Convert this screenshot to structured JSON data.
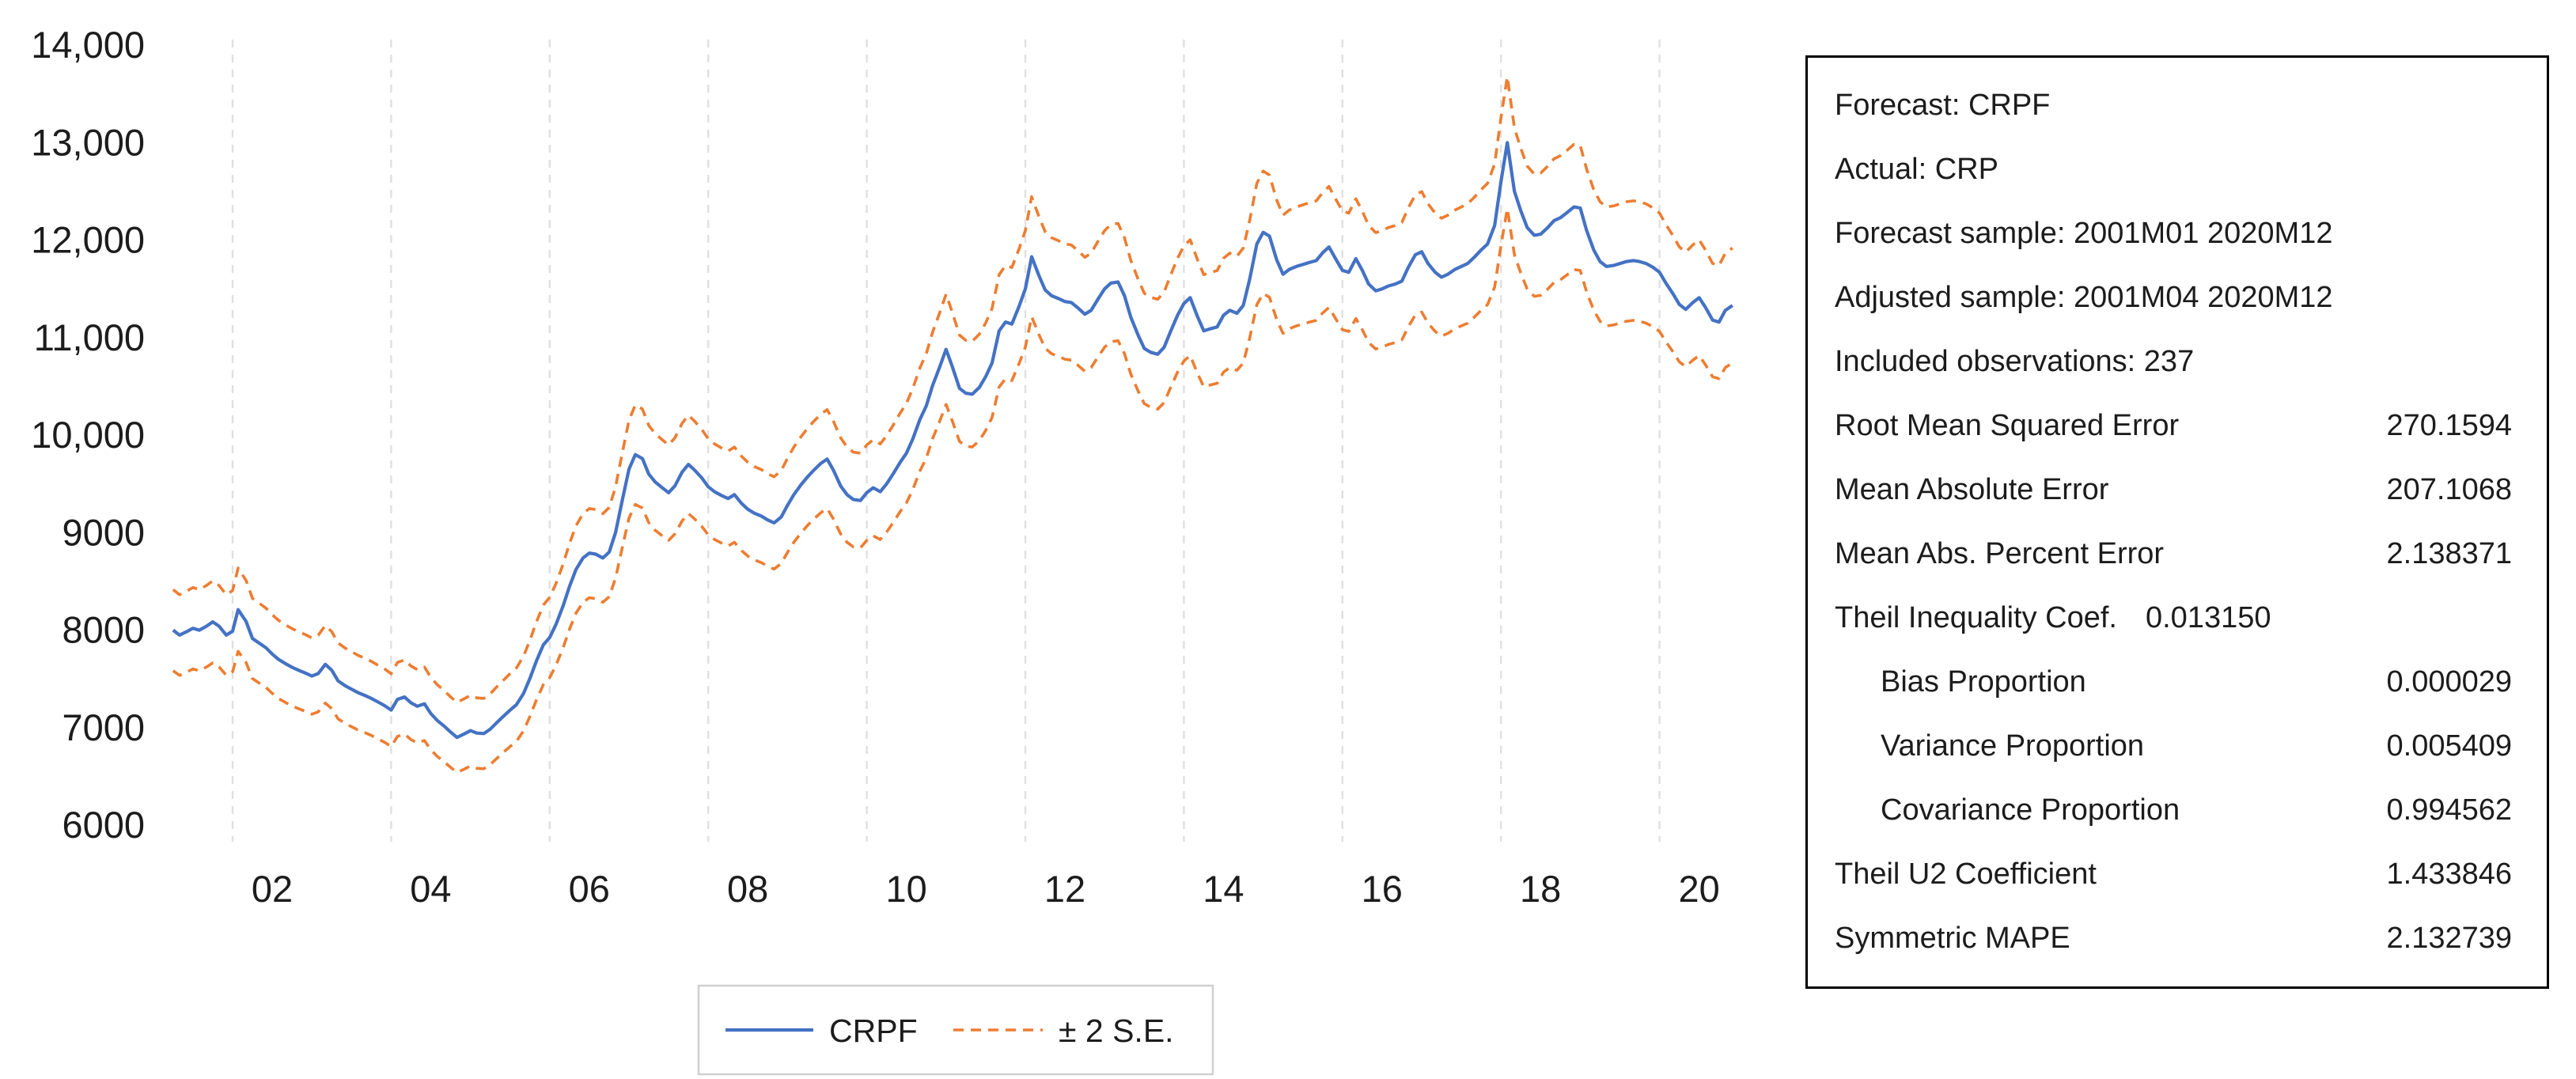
{
  "page": {
    "background": "#ffffff",
    "text_color": "#1c1c1c"
  },
  "chart_data": {
    "type": "line",
    "title": "",
    "xlabel": "",
    "ylabel": "",
    "x_axis": {
      "tick_labels": [
        "02",
        "04",
        "06",
        "08",
        "10",
        "12",
        "14",
        "16",
        "18",
        "20"
      ],
      "tick_positions": [
        2002,
        2004,
        2006,
        2008,
        2010,
        2012,
        2014,
        2016,
        2018,
        2020
      ],
      "range_decimal_years": [
        2001.0,
        2021.0
      ],
      "gridlines": "vertical dashed light gray at each labeled year"
    },
    "y_axis": {
      "tick_labels": [
        "14,000",
        "13,000",
        "12,000",
        "11,000",
        "10,000",
        "9000",
        "8000",
        "7000",
        "6000"
      ],
      "tick_values": [
        14000,
        13000,
        12000,
        11000,
        10000,
        9000,
        8000,
        7000,
        6000
      ],
      "ylim": [
        6000,
        14000
      ],
      "gridlines": "none"
    },
    "legend": {
      "position": "bottom-center",
      "border_color": "#d0d0d0",
      "items": [
        {
          "label": "CRPF",
          "color": "#4472C4",
          "line_style": "solid"
        },
        {
          "label": "± 2 S.E.",
          "color": "#ED7D31",
          "line_style": "dashed"
        }
      ]
    },
    "colors": {
      "crpf": "#4472C4",
      "se_band": "#ED7D31",
      "gridline": "#e0e0e0"
    },
    "series": [
      {
        "name": "CRPF",
        "color": "#4472C4",
        "style": "solid",
        "x_unit": "decimal_year",
        "points": [
          [
            2001.25,
            8000
          ],
          [
            2001.33,
            7950
          ],
          [
            2001.42,
            7985
          ],
          [
            2001.5,
            8020
          ],
          [
            2001.58,
            8000
          ],
          [
            2001.67,
            8040
          ],
          [
            2001.75,
            8085
          ],
          [
            2001.83,
            8040
          ],
          [
            2001.92,
            7950
          ],
          [
            2002.0,
            7990
          ],
          [
            2002.07,
            8210
          ],
          [
            2002.17,
            8090
          ],
          [
            2002.25,
            7915
          ],
          [
            2002.33,
            7870
          ],
          [
            2002.42,
            7820
          ],
          [
            2002.5,
            7755
          ],
          [
            2002.58,
            7700
          ],
          [
            2002.67,
            7655
          ],
          [
            2002.75,
            7620
          ],
          [
            2002.83,
            7590
          ],
          [
            2002.92,
            7560
          ],
          [
            2003.0,
            7530
          ],
          [
            2003.08,
            7555
          ],
          [
            2003.17,
            7650
          ],
          [
            2003.25,
            7590
          ],
          [
            2003.33,
            7480
          ],
          [
            2003.42,
            7430
          ],
          [
            2003.5,
            7395
          ],
          [
            2003.58,
            7360
          ],
          [
            2003.67,
            7330
          ],
          [
            2003.75,
            7300
          ],
          [
            2003.83,
            7265
          ],
          [
            2003.92,
            7225
          ],
          [
            2004.0,
            7180
          ],
          [
            2004.08,
            7290
          ],
          [
            2004.17,
            7315
          ],
          [
            2004.25,
            7255
          ],
          [
            2004.33,
            7220
          ],
          [
            2004.42,
            7245
          ],
          [
            2004.5,
            7145
          ],
          [
            2004.58,
            7075
          ],
          [
            2004.67,
            7015
          ],
          [
            2004.75,
            6955
          ],
          [
            2004.83,
            6900
          ],
          [
            2004.92,
            6935
          ],
          [
            2005.0,
            6970
          ],
          [
            2005.08,
            6945
          ],
          [
            2005.17,
            6940
          ],
          [
            2005.25,
            6985
          ],
          [
            2005.33,
            7050
          ],
          [
            2005.42,
            7120
          ],
          [
            2005.5,
            7180
          ],
          [
            2005.58,
            7235
          ],
          [
            2005.67,
            7350
          ],
          [
            2005.75,
            7505
          ],
          [
            2005.83,
            7680
          ],
          [
            2005.92,
            7850
          ],
          [
            2006.0,
            7925
          ],
          [
            2006.08,
            8060
          ],
          [
            2006.17,
            8250
          ],
          [
            2006.25,
            8450
          ],
          [
            2006.33,
            8620
          ],
          [
            2006.42,
            8740
          ],
          [
            2006.5,
            8790
          ],
          [
            2006.58,
            8780
          ],
          [
            2006.67,
            8740
          ],
          [
            2006.75,
            8800
          ],
          [
            2006.83,
            9000
          ],
          [
            2006.92,
            9350
          ],
          [
            2007.0,
            9650
          ],
          [
            2007.08,
            9800
          ],
          [
            2007.17,
            9760
          ],
          [
            2007.25,
            9600
          ],
          [
            2007.33,
            9520
          ],
          [
            2007.42,
            9460
          ],
          [
            2007.5,
            9410
          ],
          [
            2007.58,
            9480
          ],
          [
            2007.67,
            9620
          ],
          [
            2007.75,
            9700
          ],
          [
            2007.83,
            9640
          ],
          [
            2007.92,
            9560
          ],
          [
            2008.0,
            9470
          ],
          [
            2008.08,
            9420
          ],
          [
            2008.17,
            9380
          ],
          [
            2008.25,
            9350
          ],
          [
            2008.33,
            9390
          ],
          [
            2008.42,
            9300
          ],
          [
            2008.5,
            9240
          ],
          [
            2008.58,
            9200
          ],
          [
            2008.67,
            9170
          ],
          [
            2008.75,
            9130
          ],
          [
            2008.83,
            9100
          ],
          [
            2008.92,
            9160
          ],
          [
            2009.0,
            9280
          ],
          [
            2009.08,
            9390
          ],
          [
            2009.17,
            9490
          ],
          [
            2009.25,
            9570
          ],
          [
            2009.33,
            9640
          ],
          [
            2009.42,
            9710
          ],
          [
            2009.5,
            9755
          ],
          [
            2009.58,
            9640
          ],
          [
            2009.67,
            9480
          ],
          [
            2009.75,
            9390
          ],
          [
            2009.83,
            9340
          ],
          [
            2009.92,
            9330
          ],
          [
            2010.0,
            9410
          ],
          [
            2010.08,
            9460
          ],
          [
            2010.17,
            9420
          ],
          [
            2010.25,
            9500
          ],
          [
            2010.33,
            9600
          ],
          [
            2010.42,
            9720
          ],
          [
            2010.5,
            9815
          ],
          [
            2010.58,
            9960
          ],
          [
            2010.67,
            10160
          ],
          [
            2010.75,
            10300
          ],
          [
            2010.83,
            10510
          ],
          [
            2010.92,
            10700
          ],
          [
            2011.0,
            10880
          ],
          [
            2011.08,
            10700
          ],
          [
            2011.17,
            10480
          ],
          [
            2011.25,
            10430
          ],
          [
            2011.33,
            10420
          ],
          [
            2011.42,
            10490
          ],
          [
            2011.5,
            10600
          ],
          [
            2011.58,
            10740
          ],
          [
            2011.67,
            11070
          ],
          [
            2011.75,
            11160
          ],
          [
            2011.83,
            11140
          ],
          [
            2011.92,
            11320
          ],
          [
            2012.0,
            11500
          ],
          [
            2012.08,
            11830
          ],
          [
            2012.17,
            11640
          ],
          [
            2012.25,
            11490
          ],
          [
            2012.33,
            11430
          ],
          [
            2012.42,
            11400
          ],
          [
            2012.5,
            11370
          ],
          [
            2012.58,
            11360
          ],
          [
            2012.67,
            11300
          ],
          [
            2012.75,
            11240
          ],
          [
            2012.83,
            11280
          ],
          [
            2012.92,
            11400
          ],
          [
            2013.0,
            11500
          ],
          [
            2013.08,
            11560
          ],
          [
            2013.17,
            11570
          ],
          [
            2013.25,
            11430
          ],
          [
            2013.33,
            11210
          ],
          [
            2013.42,
            11030
          ],
          [
            2013.5,
            10890
          ],
          [
            2013.58,
            10850
          ],
          [
            2013.67,
            10830
          ],
          [
            2013.75,
            10900
          ],
          [
            2013.83,
            11060
          ],
          [
            2013.92,
            11230
          ],
          [
            2014.0,
            11350
          ],
          [
            2014.08,
            11410
          ],
          [
            2014.17,
            11220
          ],
          [
            2014.25,
            11070
          ],
          [
            2014.33,
            11090
          ],
          [
            2014.42,
            11110
          ],
          [
            2014.5,
            11230
          ],
          [
            2014.58,
            11280
          ],
          [
            2014.67,
            11250
          ],
          [
            2014.75,
            11330
          ],
          [
            2014.83,
            11600
          ],
          [
            2014.92,
            11960
          ],
          [
            2015.0,
            12080
          ],
          [
            2015.08,
            12040
          ],
          [
            2015.17,
            11800
          ],
          [
            2015.25,
            11650
          ],
          [
            2015.33,
            11700
          ],
          [
            2015.42,
            11730
          ],
          [
            2015.5,
            11750
          ],
          [
            2015.58,
            11770
          ],
          [
            2015.67,
            11790
          ],
          [
            2015.75,
            11870
          ],
          [
            2015.83,
            11930
          ],
          [
            2015.92,
            11800
          ],
          [
            2016.0,
            11690
          ],
          [
            2016.08,
            11670
          ],
          [
            2016.17,
            11810
          ],
          [
            2016.25,
            11690
          ],
          [
            2016.33,
            11550
          ],
          [
            2016.42,
            11480
          ],
          [
            2016.5,
            11500
          ],
          [
            2016.58,
            11530
          ],
          [
            2016.67,
            11550
          ],
          [
            2016.75,
            11580
          ],
          [
            2016.83,
            11720
          ],
          [
            2016.92,
            11850
          ],
          [
            2017.0,
            11880
          ],
          [
            2017.08,
            11760
          ],
          [
            2017.17,
            11670
          ],
          [
            2017.25,
            11620
          ],
          [
            2017.33,
            11650
          ],
          [
            2017.42,
            11700
          ],
          [
            2017.5,
            11730
          ],
          [
            2017.58,
            11760
          ],
          [
            2017.67,
            11830
          ],
          [
            2017.75,
            11900
          ],
          [
            2017.83,
            11960
          ],
          [
            2017.92,
            12150
          ],
          [
            2018.0,
            12600
          ],
          [
            2018.08,
            13000
          ],
          [
            2018.17,
            12500
          ],
          [
            2018.25,
            12300
          ],
          [
            2018.33,
            12130
          ],
          [
            2018.42,
            12050
          ],
          [
            2018.5,
            12060
          ],
          [
            2018.58,
            12120
          ],
          [
            2018.67,
            12200
          ],
          [
            2018.75,
            12230
          ],
          [
            2018.83,
            12280
          ],
          [
            2018.92,
            12340
          ],
          [
            2019.0,
            12330
          ],
          [
            2019.08,
            12100
          ],
          [
            2019.17,
            11900
          ],
          [
            2019.25,
            11780
          ],
          [
            2019.33,
            11730
          ],
          [
            2019.42,
            11740
          ],
          [
            2019.5,
            11760
          ],
          [
            2019.58,
            11780
          ],
          [
            2019.67,
            11790
          ],
          [
            2019.75,
            11780
          ],
          [
            2019.83,
            11760
          ],
          [
            2019.92,
            11720
          ],
          [
            2020.0,
            11670
          ],
          [
            2020.08,
            11560
          ],
          [
            2020.17,
            11450
          ],
          [
            2020.25,
            11340
          ],
          [
            2020.33,
            11290
          ],
          [
            2020.42,
            11360
          ],
          [
            2020.5,
            11410
          ],
          [
            2020.58,
            11310
          ],
          [
            2020.67,
            11180
          ],
          [
            2020.75,
            11160
          ],
          [
            2020.83,
            11280
          ],
          [
            2020.92,
            11330
          ]
        ]
      },
      {
        "name": "± 2 S.E.",
        "color": "#ED7D31",
        "style": "dashed",
        "derived_from": "CRPF",
        "upper_factor": 1.052,
        "lower_factor": 0.948
      }
    ]
  },
  "stats_box": {
    "rows": [
      {
        "label": "Forecast: CRPF"
      },
      {
        "label": "Actual: CRP"
      },
      {
        "label": "Forecast sample: 2001M01 2020M12"
      },
      {
        "label": "Adjusted sample: 2001M04 2020M12"
      },
      {
        "label": "Included observations: 237"
      },
      {
        "label": "Root Mean Squared Error",
        "value": "270.1594",
        "align": "right"
      },
      {
        "label": "Mean Absolute Error",
        "value": "207.1068",
        "align": "right"
      },
      {
        "label": "Mean Abs. Percent Error",
        "value": "2.138371",
        "align": "right"
      },
      {
        "label": "Theil Inequality Coef.",
        "value": "0.013150",
        "align": "inline"
      },
      {
        "label": "Bias Proportion",
        "value": "0.000029",
        "align": "right",
        "indent": true
      },
      {
        "label": "Variance Proportion",
        "value": "0.005409",
        "align": "right",
        "indent": true
      },
      {
        "label": "Covariance Proportion",
        "value": "0.994562",
        "align": "right",
        "indent": true
      },
      {
        "label": "Theil U2 Coefficient",
        "value": "1.433846",
        "align": "right"
      },
      {
        "label": "Symmetric MAPE",
        "value": "2.132739",
        "align": "right"
      }
    ]
  }
}
